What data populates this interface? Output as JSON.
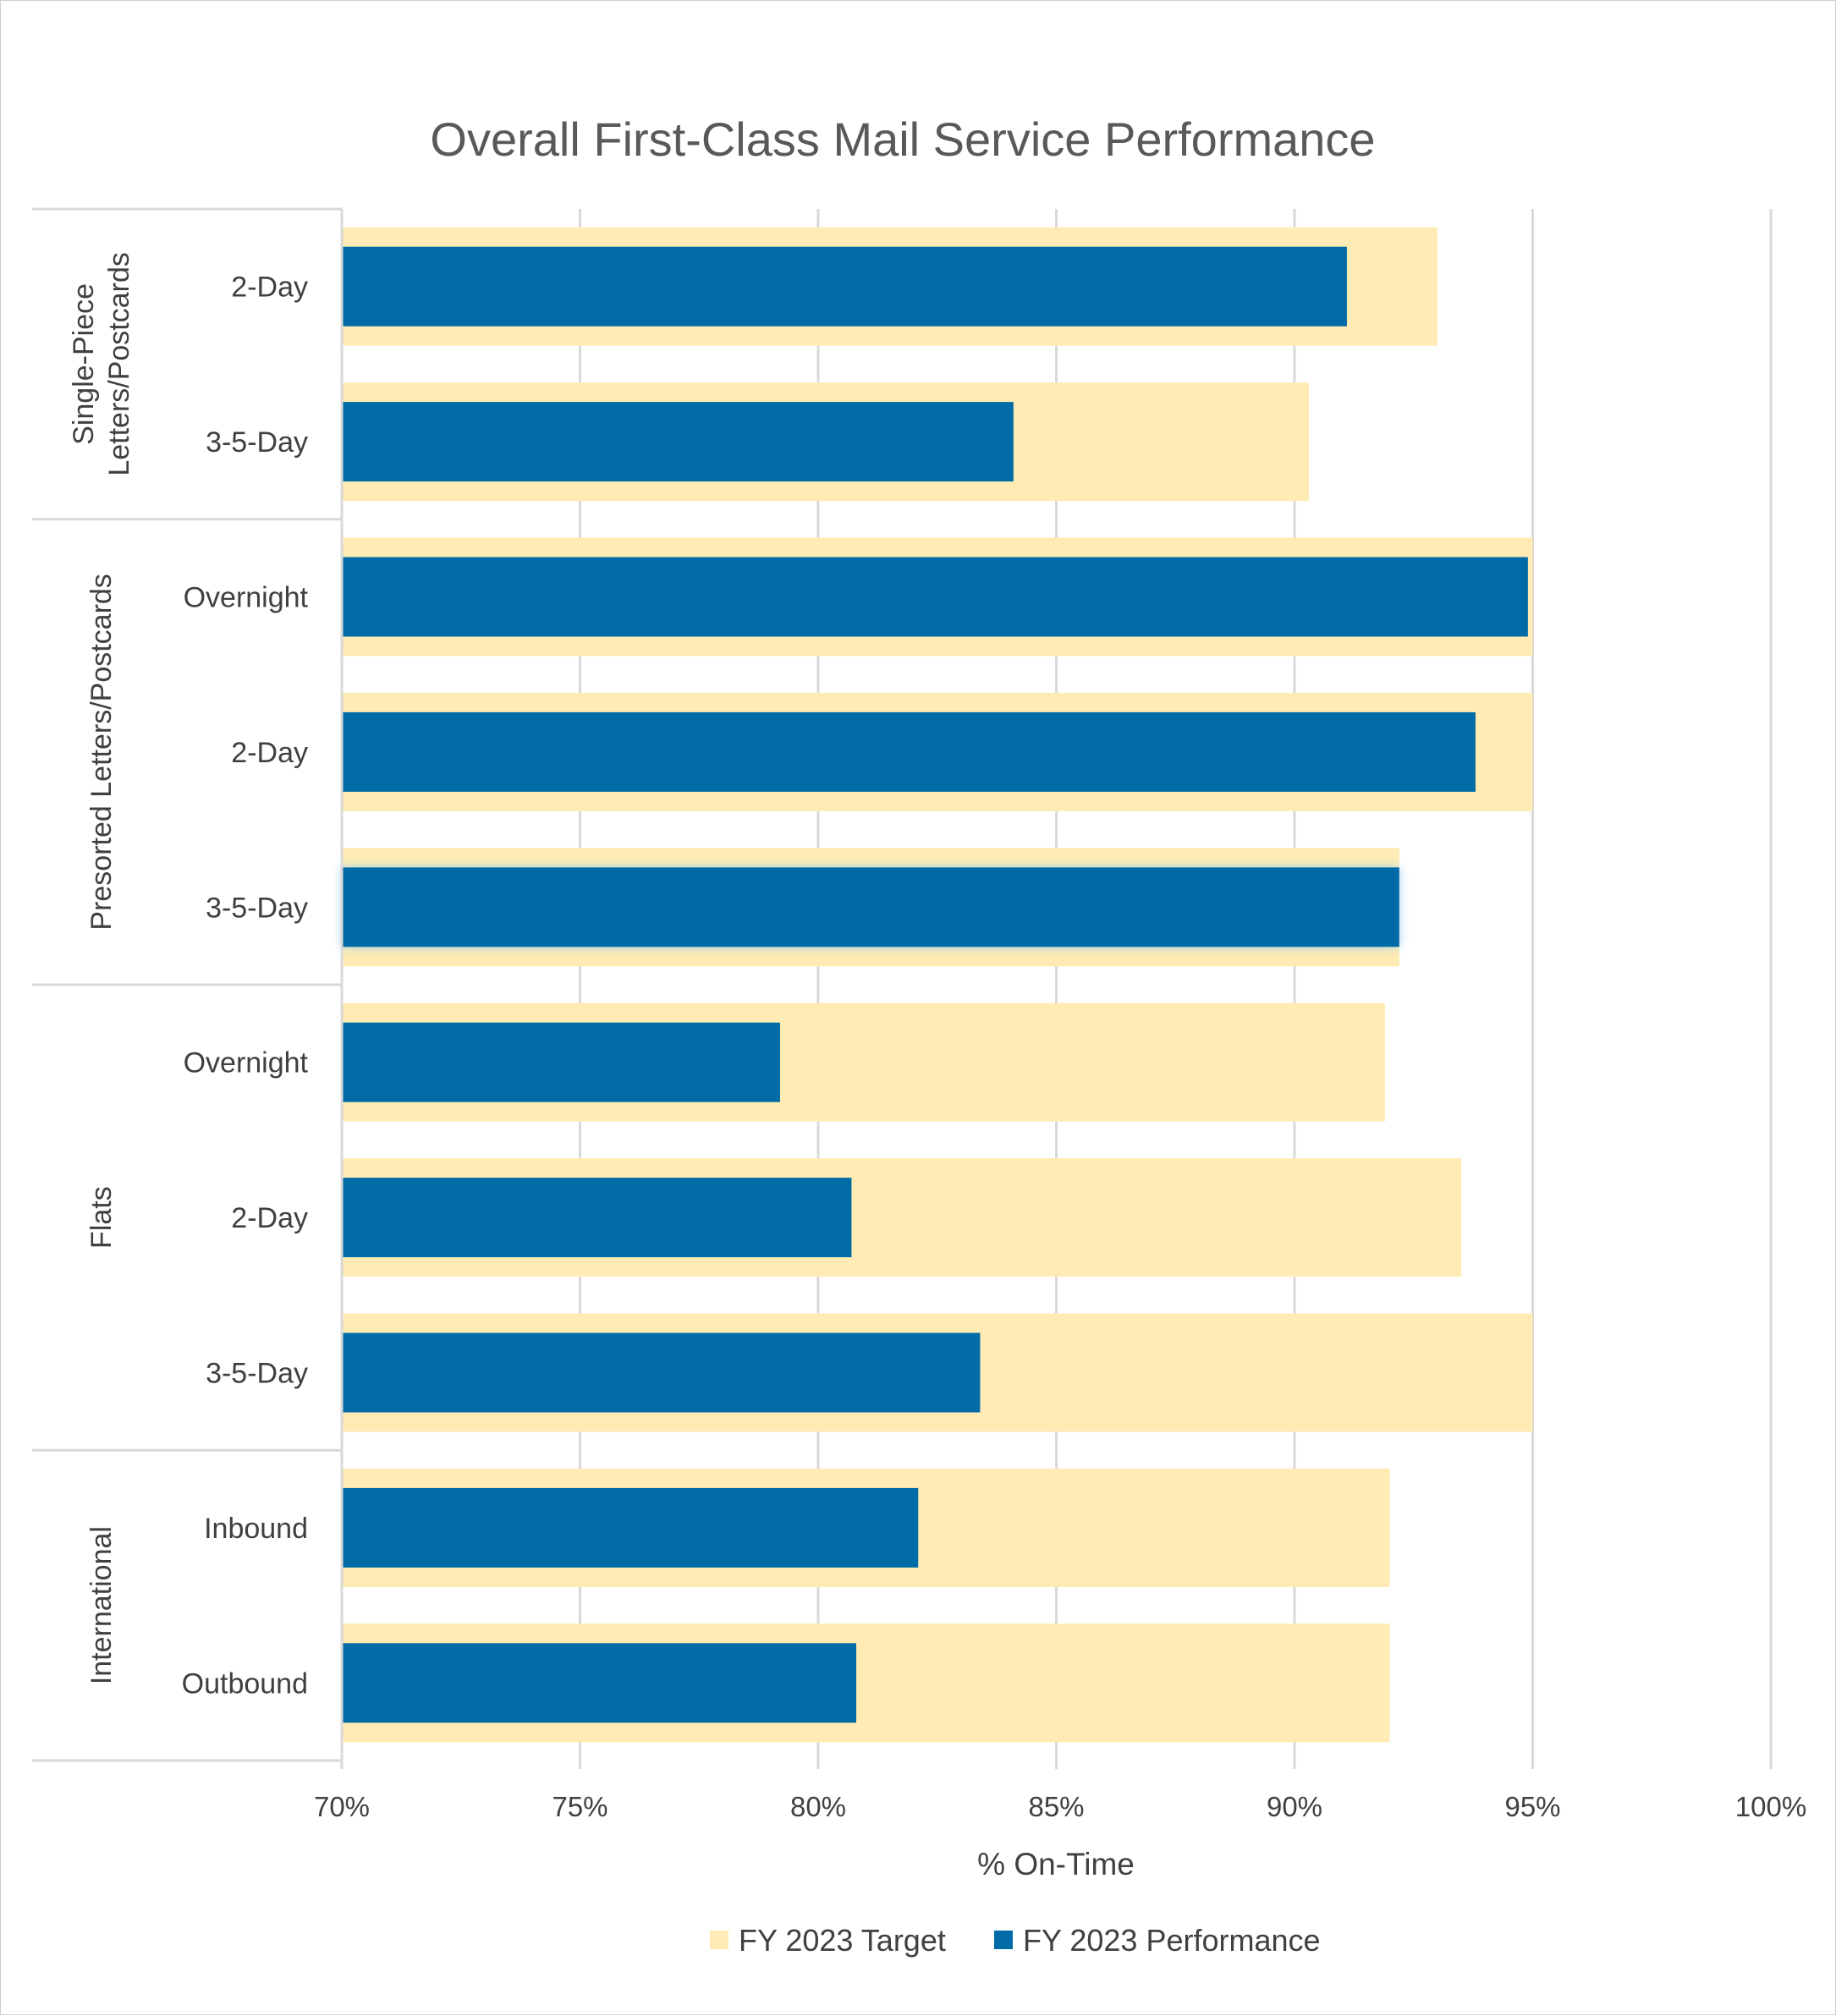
{
  "chart_data": {
    "type": "bar",
    "orientation": "horizontal",
    "title": "Overall First-Class Mail Service Performance",
    "xlabel": "% On-Time",
    "ylabel": "",
    "xlim": [
      70,
      100
    ],
    "x_ticks": [
      70,
      75,
      80,
      85,
      90,
      95,
      100
    ],
    "x_tick_labels": [
      "70%",
      "75%",
      "80%",
      "85%",
      "90%",
      "95%",
      "100%"
    ],
    "grid": true,
    "legend_position": "bottom",
    "colors": {
      "target": "#FFEBB3",
      "performance": "#006BA6"
    },
    "groups": [
      {
        "name": "Single-Piece Letters/Postcards",
        "name_lines": [
          "Single-Piece",
          "Letters/Postcards"
        ],
        "categories": [
          "2-Day",
          "3-5-Day"
        ]
      },
      {
        "name": "Presorted Letters/Postcards",
        "name_lines": [
          "Presorted Letters/Postcards"
        ],
        "categories": [
          "Overnight",
          "2-Day",
          "3-5-Day"
        ]
      },
      {
        "name": "Flats",
        "name_lines": [
          "Flats"
        ],
        "categories": [
          "Overnight",
          "2-Day",
          "3-5-Day"
        ]
      },
      {
        "name": "International",
        "name_lines": [
          "International"
        ],
        "categories": [
          "Inbound",
          "Outbound"
        ]
      }
    ],
    "series": [
      {
        "name": "FY 2023 Target",
        "values": [
          93.0,
          90.3,
          95.0,
          95.0,
          92.2,
          91.9,
          93.5,
          95.0,
          92.0,
          92.0
        ]
      },
      {
        "name": "FY 2023 Performance",
        "values": [
          91.1,
          84.1,
          94.9,
          93.8,
          92.2,
          79.2,
          80.7,
          83.4,
          82.1,
          80.8
        ]
      }
    ]
  }
}
